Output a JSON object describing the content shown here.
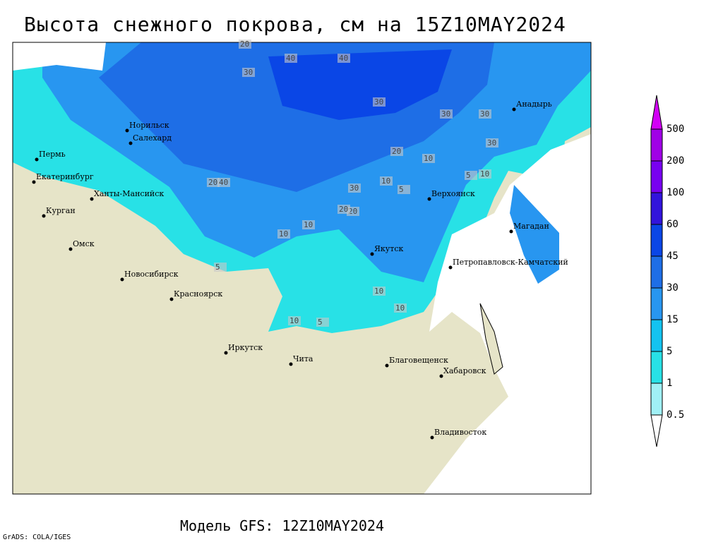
{
  "header": {
    "title": "Высота снежного покрова, см на 15Z10MAY2024"
  },
  "footer": {
    "model": "Модель GFS: 12Z10MAY2024",
    "credit": "GrADS: COLA/IGES"
  },
  "map": {
    "cities": [
      "Норильск",
      "Салехард",
      "Пермь",
      "Екатеринбург",
      "Ханты-Мансийск",
      "Курган",
      "Омск",
      "Новосибирск",
      "Красноярск",
      "Иркутск",
      "Чита",
      "Благовещенск",
      "Хабаровск",
      "Владивосток",
      "Якутск",
      "Верхоянск",
      "Магадан",
      "Петропавловск-Камчатский",
      "Анадырь"
    ],
    "contour_labels": [
      "40",
      "40",
      "20",
      "30",
      "30",
      "30",
      "30",
      "20",
      "10",
      "10",
      "5",
      "5",
      "10",
      "20",
      "10",
      "10",
      "5",
      "10",
      "20",
      "30",
      "10",
      "5",
      "10",
      "30",
      "20",
      "40"
    ]
  },
  "colorbar": {
    "levels": [
      0.5,
      1,
      5,
      15,
      30,
      45,
      60,
      100,
      200,
      500
    ],
    "colors": [
      "#ffffff",
      "#a0f0f5",
      "#28e1e6",
      "#14c3f0",
      "#2896f0",
      "#1e6ee6",
      "#0a46e6",
      "#3214dc",
      "#7800f0",
      "#a000e6",
      "#d200f5"
    ]
  }
}
